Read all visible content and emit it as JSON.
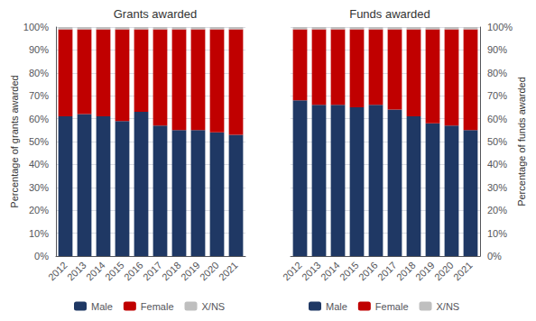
{
  "chart_data": [
    {
      "type": "bar",
      "title": "Grants awarded",
      "ylabel": "Percentage of grants awarded",
      "categories": [
        "2012",
        "2013",
        "2014",
        "2015",
        "2016",
        "2017",
        "2018",
        "2019",
        "2020",
        "2021"
      ],
      "series": [
        {
          "name": "Male",
          "color": "#1f3864",
          "values": [
            61,
            62,
            61,
            59,
            63,
            57,
            55,
            55,
            54,
            53
          ]
        },
        {
          "name": "Female",
          "color": "#c00000",
          "values": [
            38,
            37,
            38,
            40,
            36,
            42,
            44,
            44,
            45,
            46
          ]
        },
        {
          "name": "X/NS",
          "color": "#bfbfbf",
          "values": [
            1,
            1,
            1,
            1,
            1,
            1,
            1,
            1,
            1,
            1
          ]
        }
      ],
      "ylim": [
        0,
        100
      ],
      "yticks": [
        {
          "value": 0,
          "label": "0%"
        },
        {
          "value": 10,
          "label": "10%"
        },
        {
          "value": 20,
          "label": "20%"
        },
        {
          "value": 30,
          "label": "30%"
        },
        {
          "value": 40,
          "label": "40%"
        },
        {
          "value": 50,
          "label": "50%"
        },
        {
          "value": 60,
          "label": "60%"
        },
        {
          "value": 70,
          "label": "70%"
        },
        {
          "value": 80,
          "label": "80%"
        },
        {
          "value": 90,
          "label": "90%"
        },
        {
          "value": 100,
          "label": "100%"
        }
      ],
      "grid": true,
      "stacked": true,
      "legend": "bottom"
    },
    {
      "type": "bar",
      "title": "Funds awarded",
      "ylabel": "Percentage of funds awarded",
      "categories": [
        "2012",
        "2013",
        "2014",
        "2015",
        "2016",
        "2017",
        "2018",
        "2019",
        "2020",
        "2021"
      ],
      "series": [
        {
          "name": "Male",
          "color": "#1f3864",
          "values": [
            68,
            66,
            66,
            65,
            66,
            64,
            61,
            58,
            57,
            55
          ]
        },
        {
          "name": "Female",
          "color": "#c00000",
          "values": [
            31,
            33,
            33,
            34,
            33,
            35,
            38,
            41,
            42,
            44
          ]
        },
        {
          "name": "X/NS",
          "color": "#bfbfbf",
          "values": [
            1,
            1,
            1,
            1,
            1,
            1,
            1,
            1,
            1,
            1
          ]
        }
      ],
      "ylim": [
        0,
        100
      ],
      "yticks": [
        {
          "value": 0,
          "label": "0%"
        },
        {
          "value": 10,
          "label": "10%"
        },
        {
          "value": 20,
          "label": "20%"
        },
        {
          "value": 30,
          "label": "30%"
        },
        {
          "value": 40,
          "label": "40%"
        },
        {
          "value": 50,
          "label": "50%"
        },
        {
          "value": 60,
          "label": "60%"
        },
        {
          "value": 70,
          "label": "70%"
        },
        {
          "value": 80,
          "label": "80%"
        },
        {
          "value": 90,
          "label": "90%"
        },
        {
          "value": 100,
          "label": "100%"
        }
      ],
      "grid": true,
      "stacked": true,
      "legend": "bottom"
    }
  ]
}
